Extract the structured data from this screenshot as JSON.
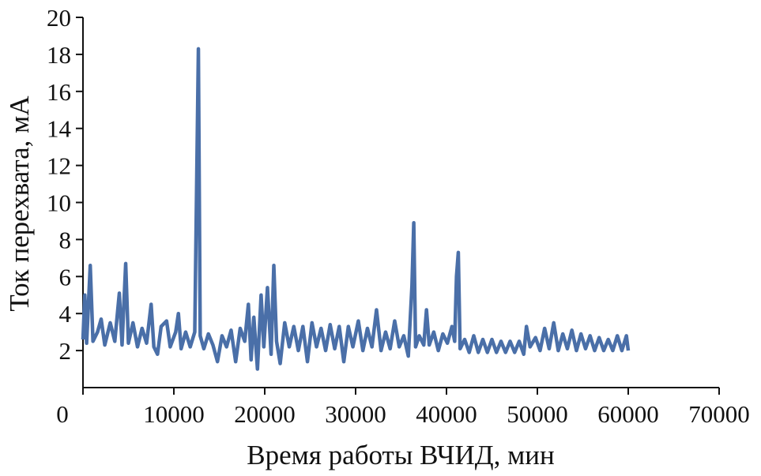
{
  "chart_data": {
    "type": "line",
    "xlabel": "Время работы ВЧИД, мин",
    "ylabel": "Ток перехвата, мА",
    "xlim": [
      0,
      70000
    ],
    "xticks": [
      0,
      10000,
      20000,
      30000,
      40000,
      50000,
      60000,
      70000
    ],
    "ylim": [
      0,
      20
    ],
    "yticks": [
      2,
      4,
      6,
      8,
      10,
      12,
      14,
      16,
      18,
      20
    ],
    "series": [
      {
        "color": "#4a6fa8",
        "x": [
          0,
          200,
          400,
          800,
          1100,
          1600,
          2000,
          2400,
          3000,
          3500,
          4000,
          4300,
          4700,
          5000,
          5500,
          6000,
          6500,
          7000,
          7500,
          7800,
          8200,
          8600,
          9200,
          9600,
          10200,
          10500,
          10800,
          11300,
          11800,
          12300,
          12700,
          12900,
          13300,
          13800,
          14300,
          14800,
          15300,
          15800,
          16300,
          16800,
          17300,
          17800,
          18200,
          18500,
          18800,
          19200,
          19600,
          19900,
          20300,
          20700,
          21000,
          21300,
          21700,
          22200,
          22700,
          23200,
          23700,
          24200,
          24700,
          25200,
          25700,
          26200,
          26700,
          27200,
          27700,
          28200,
          28700,
          29200,
          29700,
          30300,
          30800,
          31300,
          31800,
          32300,
          32800,
          33300,
          33800,
          34300,
          34800,
          35300,
          35800,
          36200,
          36400,
          36600,
          37000,
          37500,
          37800,
          38100,
          38600,
          39100,
          39600,
          40100,
          40600,
          40900,
          41100,
          41300,
          41500,
          42000,
          42500,
          43000,
          43500,
          44000,
          44500,
          45000,
          45500,
          46000,
          46500,
          47000,
          47500,
          48000,
          48500,
          48800,
          49200,
          49800,
          50300,
          50800,
          51300,
          51800,
          52300,
          52800,
          53300,
          53800,
          54300,
          54800,
          55300,
          55800,
          56300,
          56800,
          57300,
          57800,
          58300,
          58800,
          59300,
          59800,
          60000
        ],
        "values": [
          2.6,
          5.0,
          2.4,
          6.6,
          2.5,
          3.0,
          3.7,
          2.3,
          3.5,
          2.5,
          5.1,
          2.3,
          6.7,
          2.4,
          3.5,
          2.2,
          3.2,
          2.4,
          4.5,
          2.2,
          1.8,
          3.3,
          3.6,
          2.2,
          3.0,
          4.0,
          2.1,
          3.0,
          2.2,
          3.0,
          18.3,
          2.8,
          2.1,
          2.9,
          2.3,
          1.4,
          2.8,
          2.2,
          3.1,
          1.4,
          3.2,
          2.5,
          4.5,
          1.5,
          3.8,
          1.0,
          5.0,
          2.2,
          5.4,
          1.8,
          6.6,
          2.5,
          1.3,
          3.5,
          2.2,
          3.3,
          2.0,
          3.3,
          1.4,
          3.5,
          2.2,
          3.2,
          2.0,
          3.4,
          2.1,
          3.3,
          1.4,
          3.3,
          2.2,
          3.6,
          2.0,
          3.2,
          2.2,
          4.2,
          2.0,
          3.0,
          2.1,
          3.6,
          2.2,
          2.8,
          1.7,
          5.5,
          8.9,
          2.2,
          2.8,
          2.3,
          4.2,
          2.3,
          3.0,
          2.0,
          2.9,
          2.4,
          3.3,
          2.5,
          6.0,
          7.3,
          2.1,
          2.6,
          1.9,
          2.8,
          1.9,
          2.6,
          1.9,
          2.6,
          1.9,
          2.5,
          1.9,
          2.5,
          1.9,
          2.5,
          1.8,
          3.3,
          2.2,
          2.7,
          2.0,
          3.2,
          2.1,
          3.5,
          2.0,
          2.9,
          2.1,
          3.1,
          2.0,
          2.9,
          2.1,
          2.8,
          2.0,
          2.7,
          2.0,
          2.6,
          2.0,
          2.8,
          2.0,
          2.8,
          2.0
        ]
      }
    ]
  }
}
